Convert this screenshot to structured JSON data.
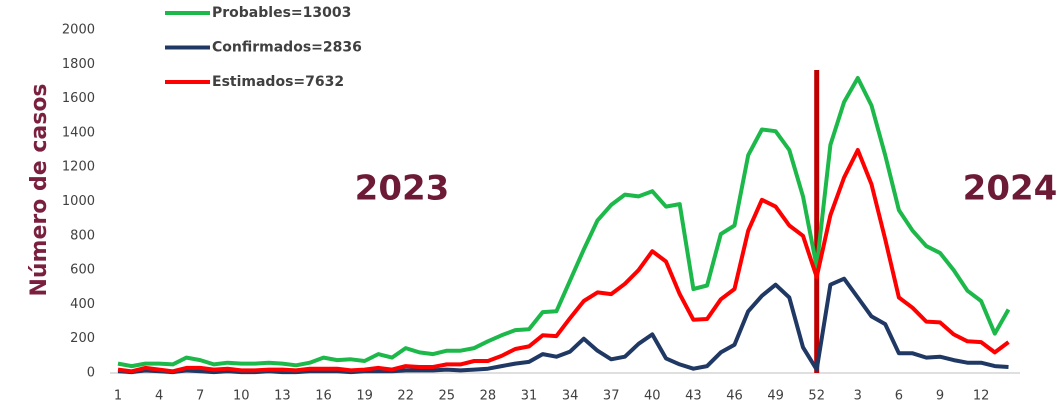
{
  "chart_data": {
    "type": "line",
    "y_label": "Número de casos",
    "annotations": [
      "2023",
      "2024"
    ],
    "categories": [
      "1",
      null,
      null,
      "4",
      null,
      null,
      "7",
      null,
      null,
      "10",
      null,
      null,
      "13",
      null,
      null,
      "16",
      null,
      null,
      "19",
      null,
      null,
      "22",
      null,
      null,
      "25",
      null,
      null,
      "28",
      null,
      null,
      "31",
      null,
      null,
      "34",
      null,
      null,
      "37",
      null,
      null,
      "40",
      null,
      null,
      "43",
      null,
      null,
      "46",
      null,
      null,
      "49",
      null,
      null,
      "52",
      null,
      null,
      "3",
      null,
      null,
      "6",
      null,
      null,
      "9",
      null,
      null,
      "12",
      null,
      null
    ],
    "series": [
      {
        "name": "Probables=13003",
        "color": "#1db84a",
        "values": [
          55,
          40,
          55,
          55,
          50,
          90,
          75,
          50,
          60,
          55,
          55,
          60,
          55,
          45,
          60,
          90,
          75,
          80,
          70,
          110,
          90,
          145,
          120,
          110,
          130,
          130,
          145,
          185,
          220,
          250,
          255,
          355,
          360,
          540,
          720,
          890,
          980,
          1040,
          1030,
          1060,
          970,
          985,
          490,
          510,
          810,
          860,
          1270,
          1420,
          1410,
          1300,
          1030,
          620,
          1330,
          1580,
          1720,
          1560,
          1270,
          950,
          830,
          740,
          700,
          600,
          480,
          420,
          230,
          370
        ]
      },
      {
        "name": "Confirmados=2836",
        "color": "#1f3864",
        "values": [
          10,
          5,
          15,
          10,
          5,
          15,
          10,
          5,
          10,
          5,
          5,
          10,
          5,
          5,
          10,
          10,
          10,
          5,
          10,
          10,
          10,
          15,
          15,
          15,
          20,
          15,
          20,
          25,
          40,
          55,
          65,
          110,
          95,
          125,
          200,
          130,
          80,
          95,
          170,
          225,
          85,
          50,
          25,
          40,
          120,
          165,
          360,
          450,
          515,
          440,
          150,
          20,
          515,
          550,
          440,
          330,
          285,
          115,
          115,
          90,
          95,
          75,
          60,
          60,
          40,
          35
        ]
      },
      {
        "name": "Estimados=7632",
        "color": "#ff0000",
        "values": [
          20,
          10,
          30,
          20,
          10,
          30,
          30,
          20,
          25,
          15,
          15,
          20,
          20,
          15,
          25,
          25,
          25,
          15,
          20,
          30,
          20,
          40,
          35,
          35,
          50,
          50,
          70,
          70,
          100,
          140,
          155,
          220,
          215,
          320,
          420,
          470,
          460,
          520,
          600,
          710,
          650,
          460,
          310,
          315,
          430,
          490,
          830,
          1010,
          970,
          860,
          800,
          560,
          920,
          1140,
          1300,
          1100,
          780,
          440,
          380,
          300,
          295,
          225,
          185,
          180,
          120,
          180
        ]
      }
    ],
    "ylim": [
      0,
      2000
    ],
    "yticks": [
      0,
      200,
      400,
      600,
      800,
      1000,
      1200,
      1400,
      1600,
      1800,
      2000
    ],
    "grid": false
  }
}
